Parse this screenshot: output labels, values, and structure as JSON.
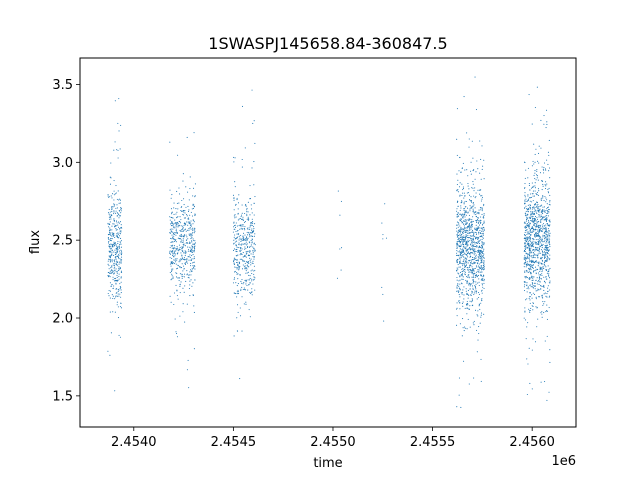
{
  "chart_data": {
    "type": "scatter",
    "title": "1SWASPJ145658.84-360847.5",
    "xlabel": "time",
    "ylabel": "flux",
    "x_offset_label": "1e6",
    "xlim": [
      2453730,
      2456220
    ],
    "ylim": [
      1.3,
      3.67
    ],
    "xticks": [
      2454000,
      2454500,
      2455000,
      2455500,
      2456000
    ],
    "xtick_labels": [
      "2.4540",
      "2.4545",
      "2.4550",
      "2.4555",
      "2.4560"
    ],
    "yticks": [
      1.5,
      2.0,
      2.5,
      3.0,
      3.5
    ],
    "ytick_labels": [
      "1.5",
      "2.0",
      "2.5",
      "3.0",
      "3.5"
    ],
    "grid": false,
    "marker_color": "#1f77b4",
    "series": [
      {
        "values": [
          {
            "x_from": 2453870,
            "x_to": 2453940,
            "y_median": 2.45,
            "y_spread": 0.17,
            "count": 420,
            "y_min": 1.42,
            "y_max": 3.52
          },
          {
            "x_from": 2454180,
            "x_to": 2454310,
            "y_median": 2.48,
            "y_spread": 0.16,
            "count": 520,
            "y_min": 1.45,
            "y_max": 3.5
          },
          {
            "x_from": 2454500,
            "x_to": 2454610,
            "y_median": 2.45,
            "y_spread": 0.17,
            "count": 440,
            "y_min": 1.45,
            "y_max": 3.56
          },
          {
            "x_from": 2455020,
            "x_to": 2455060,
            "y_median": 2.45,
            "y_spread": 0.25,
            "count": 8,
            "y_min": 2.1,
            "y_max": 2.9
          },
          {
            "x_from": 2455240,
            "x_to": 2455270,
            "y_median": 2.45,
            "y_spread": 0.3,
            "count": 10,
            "y_min": 1.75,
            "y_max": 2.9
          },
          {
            "x_from": 2455620,
            "x_to": 2455760,
            "y_median": 2.45,
            "y_spread": 0.2,
            "count": 1100,
            "y_min": 1.42,
            "y_max": 3.55
          },
          {
            "x_from": 2455960,
            "x_to": 2456090,
            "y_median": 2.5,
            "y_spread": 0.2,
            "count": 1100,
            "y_min": 1.42,
            "y_max": 3.56
          }
        ]
      }
    ]
  }
}
